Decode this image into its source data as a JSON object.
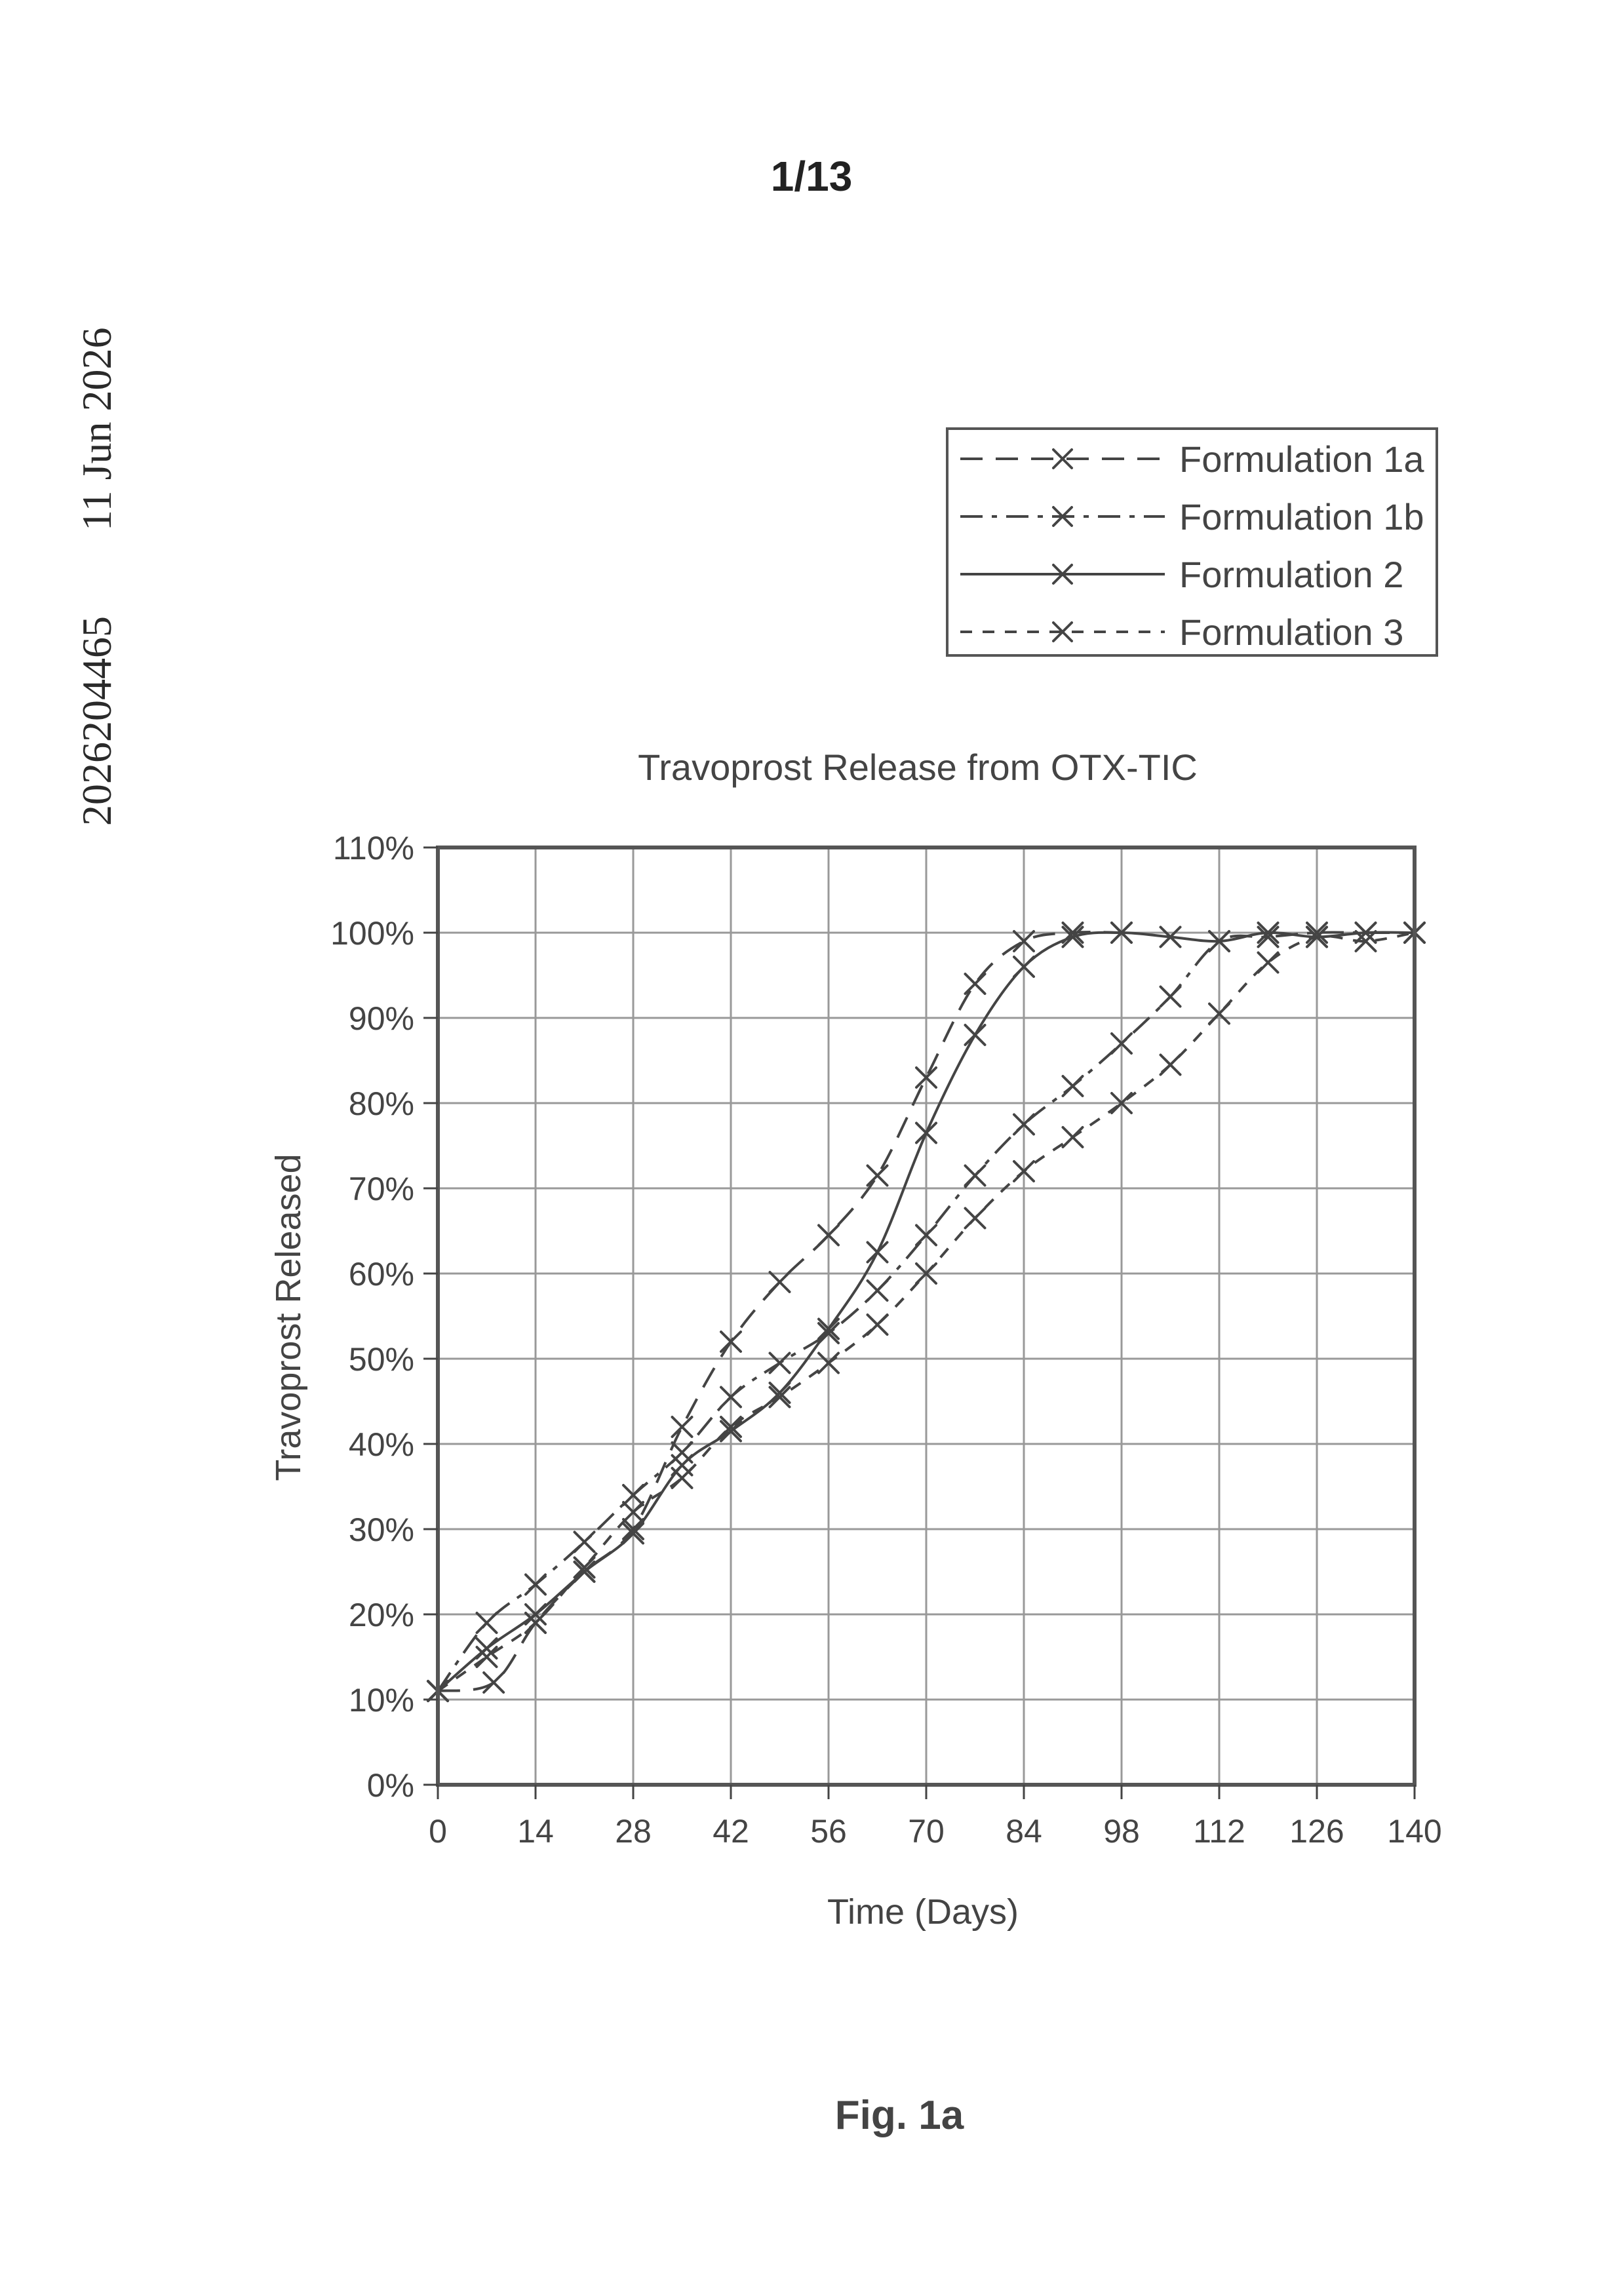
{
  "header": {
    "side_number": "2026204465",
    "side_date": "11 Jun 2026",
    "page_number": "1/13"
  },
  "caption": "Fig. 1a",
  "colors": {
    "ink": "#444444",
    "frame": "#555555",
    "grid": "#999999"
  },
  "chart_data": {
    "type": "line",
    "title": "Travoprost Release from OTX-TIC",
    "xlabel": "Time (Days)",
    "ylabel": "Travoprost Released",
    "xlim": [
      0,
      140
    ],
    "ylim": [
      0,
      110
    ],
    "x_ticks": [
      0,
      14,
      28,
      42,
      56,
      70,
      84,
      98,
      112,
      126,
      140
    ],
    "x_tick_labels": [
      "0",
      "14",
      "28",
      "42",
      "56",
      "70",
      "84",
      "98",
      "112",
      "126",
      "140"
    ],
    "y_ticks": [
      0,
      10,
      20,
      30,
      40,
      50,
      60,
      70,
      80,
      90,
      100,
      110
    ],
    "y_tick_labels": [
      "0%",
      "10%",
      "20%",
      "30%",
      "40%",
      "50%",
      "60%",
      "70%",
      "80%",
      "90%",
      "100%",
      "110%"
    ],
    "grid": true,
    "legend_position": "top-right, above plot",
    "series": [
      {
        "name": "Formulation 1a",
        "line_style": "long-dash",
        "x": [
          0,
          8,
          14,
          21,
          28,
          35,
          42,
          49,
          56,
          63,
          70,
          77,
          84,
          91,
          98
        ],
        "y": [
          11,
          12,
          19,
          25,
          30,
          42,
          52,
          59,
          64.5,
          71.5,
          83,
          94,
          99,
          100,
          100
        ]
      },
      {
        "name": "Formulation 1b",
        "line_style": "dash-dot",
        "x": [
          0,
          7,
          14,
          21,
          28,
          35,
          42,
          49,
          56,
          63,
          70,
          77,
          84,
          91,
          98,
          105,
          112,
          119,
          126,
          133,
          140
        ],
        "y": [
          11,
          19,
          23.5,
          28.5,
          34,
          39,
          45.5,
          49.5,
          53,
          58,
          64.5,
          71.5,
          77.5,
          82,
          87,
          92.5,
          99,
          99.5,
          100,
          100,
          100
        ]
      },
      {
        "name": "Formulation 2",
        "line_style": "solid",
        "x": [
          0,
          7,
          14,
          21,
          28,
          35,
          42,
          49,
          56,
          63,
          70,
          77,
          84,
          91,
          98,
          105,
          112,
          119,
          126,
          133,
          140
        ],
        "y": [
          11,
          16,
          20,
          25,
          29.5,
          37.5,
          41.5,
          46,
          53.5,
          62.5,
          76.5,
          88,
          96,
          99.5,
          100,
          99.5,
          99,
          100,
          99.5,
          100,
          100
        ]
      },
      {
        "name": "Formulation 3",
        "line_style": "short-dash",
        "x": [
          0,
          7,
          14,
          21,
          28,
          35,
          42,
          49,
          56,
          63,
          70,
          77,
          84,
          91,
          98,
          105,
          112,
          119,
          126,
          133,
          140
        ],
        "y": [
          11,
          15,
          19,
          25.5,
          32,
          36,
          42,
          45.5,
          49.5,
          54,
          60,
          66.5,
          72,
          76,
          80,
          84.5,
          90.5,
          96.5,
          99.5,
          99,
          100
        ]
      }
    ]
  }
}
